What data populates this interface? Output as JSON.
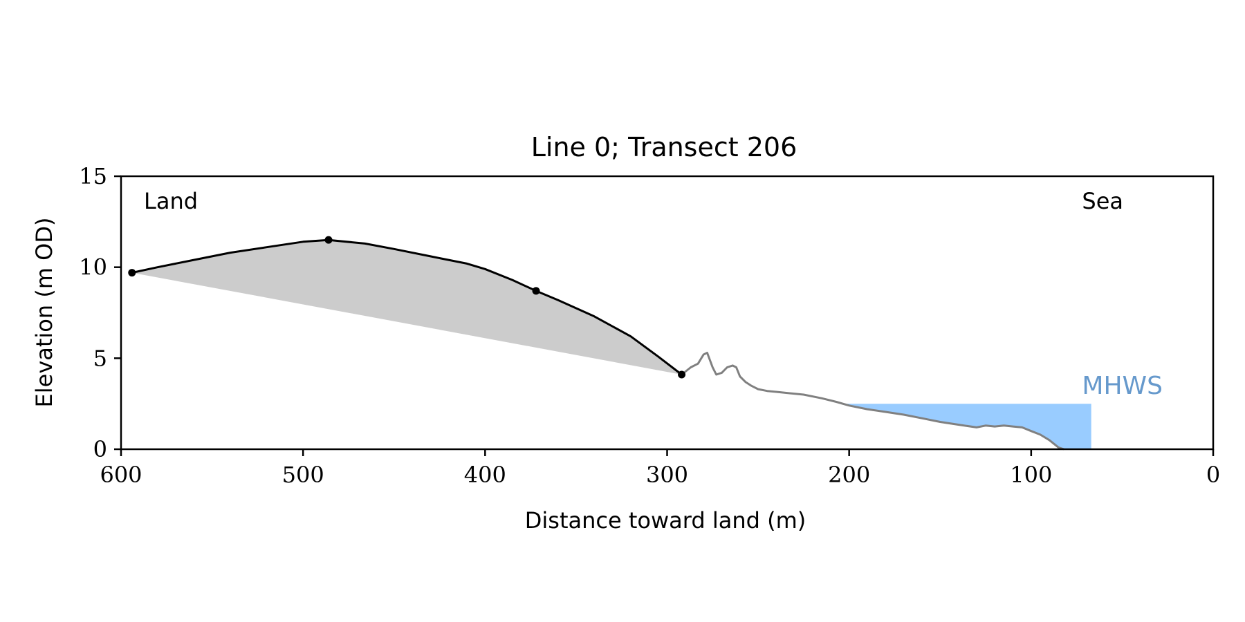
{
  "chart_data": {
    "type": "line",
    "title": "Line 0; Transect 206",
    "xlabel": "Distance toward land (m)",
    "ylabel": "Elevation (m OD)",
    "xlim": [
      600,
      0
    ],
    "ylim": [
      0,
      15
    ],
    "x_ticks": [
      600,
      500,
      400,
      300,
      200,
      100,
      0
    ],
    "y_ticks": [
      0,
      5,
      10,
      15
    ],
    "grid": false,
    "annotations": {
      "land": "Land",
      "sea": "Sea",
      "mhws": "MHWS"
    },
    "mhws": {
      "level": 2.5,
      "x_start": 205,
      "x_end": 67,
      "color": "#99ccff",
      "label_color": "#6699cc"
    },
    "dune_profile": {
      "color": "#000000",
      "points": [
        [
          594,
          9.7
        ],
        [
          580,
          10.0
        ],
        [
          560,
          10.4
        ],
        [
          540,
          10.8
        ],
        [
          520,
          11.1
        ],
        [
          500,
          11.4
        ],
        [
          486,
          11.5
        ],
        [
          466,
          11.3
        ],
        [
          450,
          11.0
        ],
        [
          430,
          10.6
        ],
        [
          410,
          10.2
        ],
        [
          400,
          9.9
        ],
        [
          385,
          9.3
        ],
        [
          372,
          8.7
        ],
        [
          360,
          8.2
        ],
        [
          340,
          7.3
        ],
        [
          320,
          6.2
        ],
        [
          305,
          5.1
        ],
        [
          292,
          4.1
        ]
      ],
      "markers": [
        [
          594,
          9.7
        ],
        [
          486,
          11.5
        ],
        [
          372,
          8.7
        ],
        [
          292,
          4.1
        ]
      ]
    },
    "shaded_region": {
      "color": "#cccccc",
      "lower_line": [
        [
          594,
          9.7
        ],
        [
          292,
          4.1
        ]
      ]
    },
    "beach_profile": {
      "color": "#808080",
      "points": [
        [
          292,
          4.1
        ],
        [
          287,
          4.5
        ],
        [
          283,
          4.7
        ],
        [
          280,
          5.2
        ],
        [
          278,
          5.3
        ],
        [
          275,
          4.5
        ],
        [
          273,
          4.1
        ],
        [
          270,
          4.2
        ],
        [
          267,
          4.5
        ],
        [
          264,
          4.6
        ],
        [
          262,
          4.5
        ],
        [
          260,
          4.0
        ],
        [
          257,
          3.7
        ],
        [
          254,
          3.5
        ],
        [
          250,
          3.3
        ],
        [
          245,
          3.2
        ],
        [
          240,
          3.15
        ],
        [
          235,
          3.1
        ],
        [
          225,
          3.0
        ],
        [
          215,
          2.8
        ],
        [
          207,
          2.6
        ],
        [
          200,
          2.4
        ],
        [
          190,
          2.2
        ],
        [
          180,
          2.05
        ],
        [
          170,
          1.9
        ],
        [
          160,
          1.7
        ],
        [
          150,
          1.5
        ],
        [
          140,
          1.35
        ],
        [
          130,
          1.2
        ],
        [
          125,
          1.3
        ],
        [
          120,
          1.25
        ],
        [
          115,
          1.3
        ],
        [
          110,
          1.25
        ],
        [
          105,
          1.2
        ],
        [
          100,
          1.0
        ],
        [
          95,
          0.8
        ],
        [
          90,
          0.5
        ],
        [
          85,
          0.1
        ],
        [
          82,
          0.0
        ]
      ]
    }
  }
}
